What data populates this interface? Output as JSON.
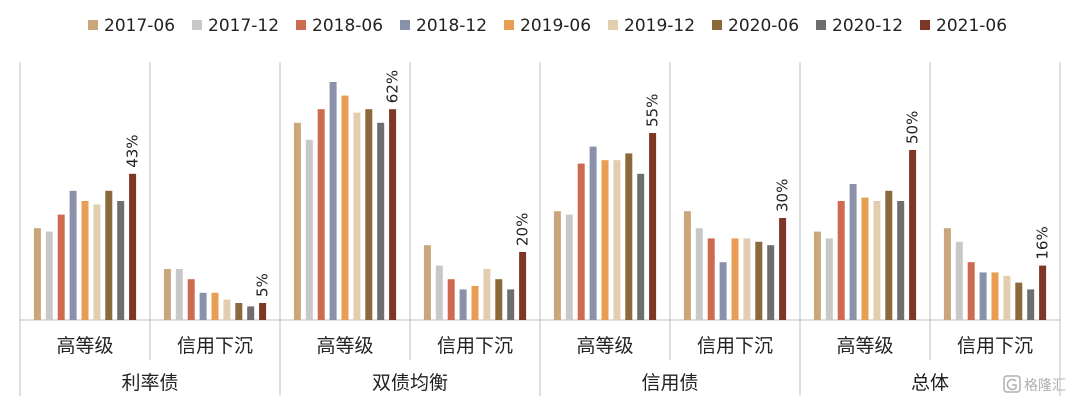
{
  "chart_data": {
    "type": "bar",
    "legend_position": "top",
    "grid": false,
    "ylim": [
      0,
      70
    ],
    "series": [
      {
        "name": "2017-06",
        "color": "#c9a77b",
        "values": [
          27,
          15,
          58,
          22,
          32,
          32,
          26,
          27
        ]
      },
      {
        "name": "2017-12",
        "color": "#c8c8c8",
        "values": [
          26,
          15,
          53,
          16,
          31,
          27,
          24,
          23
        ]
      },
      {
        "name": "2018-06",
        "color": "#cd6a4f",
        "values": [
          31,
          12,
          62,
          12,
          46,
          24,
          35,
          17
        ]
      },
      {
        "name": "2018-12",
        "color": "#8a92ab",
        "values": [
          38,
          8,
          70,
          9,
          51,
          17,
          40,
          14
        ]
      },
      {
        "name": "2019-06",
        "color": "#e89d52",
        "values": [
          35,
          8,
          66,
          10,
          47,
          24,
          36,
          14
        ]
      },
      {
        "name": "2019-12",
        "color": "#e3cdb0",
        "values": [
          34,
          6,
          61,
          15,
          47,
          24,
          35,
          13
        ]
      },
      {
        "name": "2020-06",
        "color": "#8a6a3a",
        "values": [
          38,
          5,
          62,
          12,
          49,
          23,
          38,
          11
        ]
      },
      {
        "name": "2020-12",
        "color": "#6e6e6e",
        "values": [
          35,
          4,
          58,
          9,
          43,
          22,
          35,
          9
        ]
      },
      {
        "name": "2021-06",
        "color": "#7e3626",
        "values": [
          43,
          5,
          62,
          20,
          55,
          30,
          50,
          16
        ]
      }
    ],
    "categories": [
      "高等级",
      "信用下沉",
      "高等级",
      "信用下沉",
      "高等级",
      "信用下沉",
      "高等级",
      "信用下沉"
    ],
    "groups": [
      {
        "label": "利率债",
        "categories": [
          "高等级",
          "信用下沉"
        ]
      },
      {
        "label": "双债均衡",
        "categories": [
          "高等级",
          "信用下沉"
        ]
      },
      {
        "label": "信用债",
        "categories": [
          "高等级",
          "信用下沉"
        ]
      },
      {
        "label": "总体",
        "categories": [
          "高等级",
          "信用下沉"
        ]
      }
    ],
    "data_labels": [
      "43%",
      "5%",
      "62%",
      "20%",
      "55%",
      "30%",
      "50%",
      "16%"
    ],
    "data_labels_series": "2021-06"
  },
  "watermark": {
    "text": "格隆汇",
    "icon": "g-logo-icon"
  }
}
